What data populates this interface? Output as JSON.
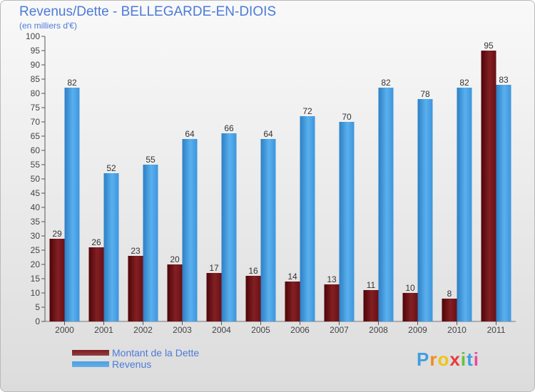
{
  "header": {
    "title": "Revenus/Dette - BELLEGARDE-EN-DIOIS",
    "subtitle": "(en milliers d'€)"
  },
  "chart_data": {
    "type": "bar",
    "categories": [
      "2000",
      "2001",
      "2002",
      "2003",
      "2004",
      "2005",
      "2006",
      "2007",
      "2008",
      "2009",
      "2010",
      "2011"
    ],
    "series": [
      {
        "name": "Montant de la Dette",
        "values": [
          29,
          26,
          23,
          20,
          17,
          16,
          14,
          13,
          11,
          10,
          8,
          95
        ],
        "color": "#7d1a1d"
      },
      {
        "name": "Revenus",
        "values": [
          82,
          52,
          55,
          64,
          66,
          64,
          72,
          70,
          82,
          78,
          82,
          83
        ],
        "color": "#4aa1e4"
      }
    ],
    "ylim": [
      0,
      100
    ],
    "yticks": [
      0,
      5,
      10,
      15,
      20,
      25,
      30,
      35,
      40,
      45,
      50,
      55,
      60,
      65,
      70,
      75,
      80,
      85,
      90,
      95,
      100
    ],
    "grid": false,
    "legend": "bottom-left"
  },
  "legend": {
    "items": [
      {
        "label": "Montant de la Dette",
        "color": "#7d1a1d"
      },
      {
        "label": "Revenus",
        "color": "#4aa1e4"
      }
    ]
  },
  "brand": {
    "letters": [
      "P",
      "r",
      "o",
      "x",
      "i",
      "t",
      "i"
    ],
    "colors": [
      "#3f9fe0",
      "#f08c1c",
      "#f0c419",
      "#e83a3a",
      "#6cbf3a",
      "#3f9fe0",
      "#e84a9a"
    ]
  }
}
